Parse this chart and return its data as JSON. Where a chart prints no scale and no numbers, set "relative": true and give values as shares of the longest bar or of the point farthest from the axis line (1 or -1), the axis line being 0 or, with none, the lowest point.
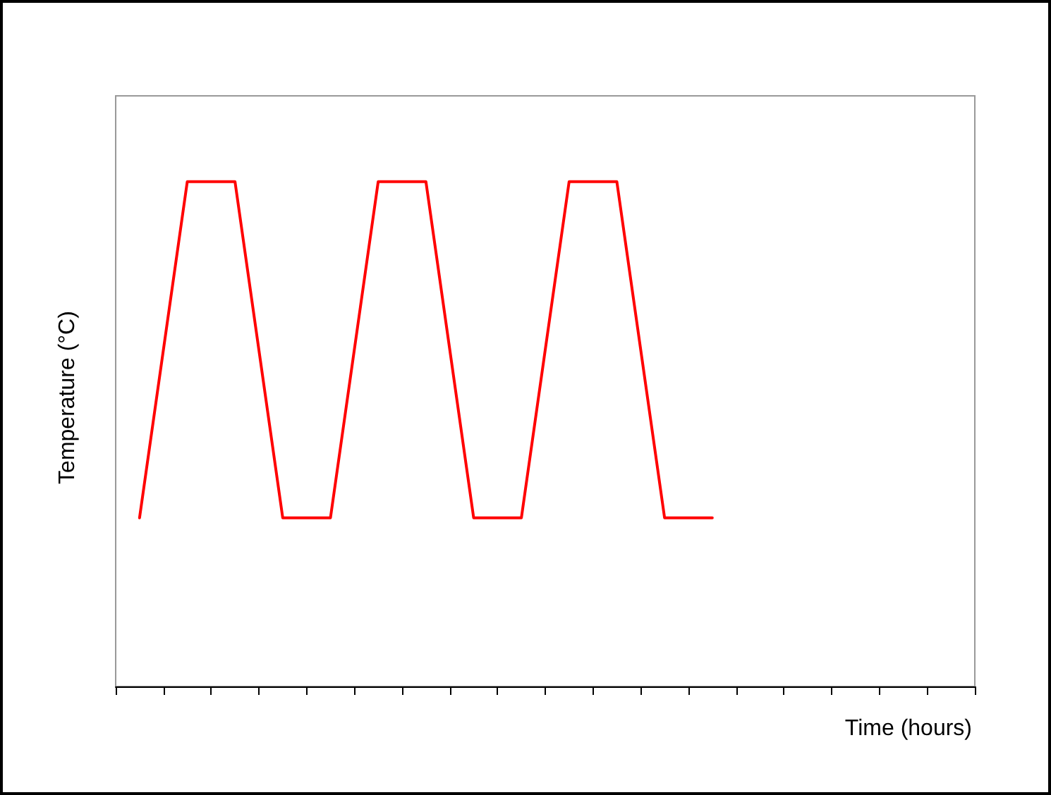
{
  "chart_data": {
    "type": "line",
    "relative": true,
    "xlabel": "Time (hours)",
    "ylabel": "Temperature (°C)",
    "categories": [
      null,
      null,
      null,
      null,
      null,
      null,
      null,
      null,
      null,
      null,
      null,
      null,
      null,
      null,
      null,
      null,
      null,
      null
    ],
    "series": [
      {
        "color": "#ff0000",
        "values": [
          0.334,
          1,
          1,
          0.334,
          0.334,
          1,
          1,
          0.334,
          0.334,
          1,
          1,
          0.334,
          0.334,
          null,
          null,
          null,
          null,
          null
        ]
      }
    ],
    "marker": "none",
    "line_style": "solid"
  }
}
